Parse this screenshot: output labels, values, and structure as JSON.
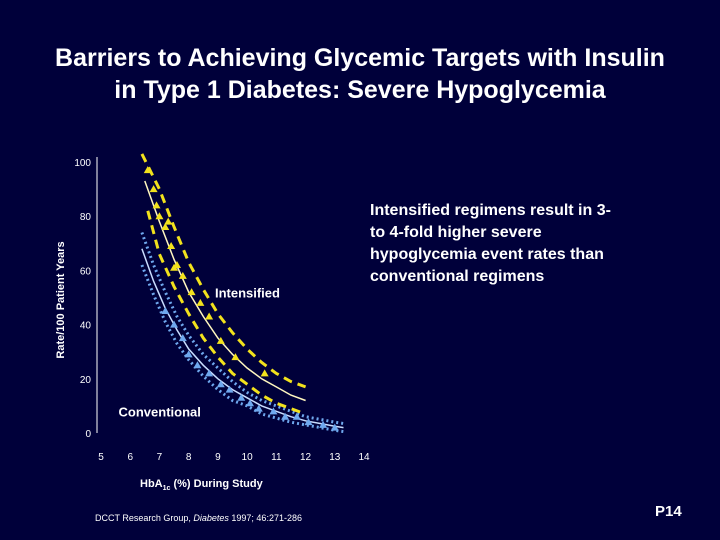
{
  "slide": {
    "title_line1": "Barriers to Achieving Glycemic Targets with Insulin",
    "title_line2": "in Type 1 Diabetes: Severe Hypoglycemia",
    "callout": "Intensified regimens result in 3- to 4-fold higher severe hypoglycemia event rates than conventional regimens",
    "reference_prefix": "DCCT Research Group, ",
    "reference_journal": "Diabetes",
    "reference_suffix": " 1997; 46:271-286",
    "slide_code": "P14"
  },
  "colors": {
    "background": "#00003a",
    "intensified": "#f2e21c",
    "intensified_fit": "#fff7c0",
    "conventional": "#6fa8ee",
    "conventional_fit": "#c9ddff",
    "text": "#ffffff"
  },
  "chart_data": {
    "type": "line",
    "title": "",
    "xlabel_main": "Hb",
    "xlabel_sub": "A",
    "xlabel_subsub": "1c",
    "xlabel_rest": " (%) During Study",
    "ylabel": "Rate/100 Patient Years",
    "xlim": [
      5,
      14
    ],
    "ylim": [
      0,
      100
    ],
    "x_ticks": [
      5,
      6,
      7,
      8,
      9,
      10,
      11,
      12,
      13,
      14
    ],
    "y_ticks": [
      0,
      20,
      40,
      60,
      80,
      100
    ],
    "grid": false,
    "series": [
      {
        "name": "Intensified",
        "label_at": [
          8.9,
          50
        ],
        "fit": [
          [
            6.5,
            93
          ],
          [
            7,
            78
          ],
          [
            7.5,
            64
          ],
          [
            8,
            52
          ],
          [
            8.5,
            43
          ],
          [
            9,
            35
          ],
          [
            9.5,
            29
          ],
          [
            10,
            24
          ],
          [
            10.5,
            20
          ],
          [
            11,
            17
          ],
          [
            11.5,
            14
          ],
          [
            12,
            12
          ]
        ],
        "upper": [
          [
            6.4,
            103
          ],
          [
            7,
            90
          ],
          [
            7.5,
            76
          ],
          [
            8,
            63
          ],
          [
            8.5,
            53
          ],
          [
            9,
            44
          ],
          [
            9.5,
            37
          ],
          [
            10,
            31
          ],
          [
            10.5,
            26
          ],
          [
            11,
            22
          ],
          [
            11.5,
            19
          ],
          [
            12,
            17
          ]
        ],
        "lower": [
          [
            6.6,
            82
          ],
          [
            7,
            66
          ],
          [
            7.5,
            54
          ],
          [
            8,
            44
          ],
          [
            8.5,
            35
          ],
          [
            9,
            28
          ],
          [
            9.5,
            22
          ],
          [
            10,
            18
          ],
          [
            10.5,
            14
          ],
          [
            11,
            11
          ],
          [
            11.5,
            9
          ],
          [
            12,
            7
          ]
        ],
        "points": [
          [
            6.6,
            97
          ],
          [
            6.8,
            90
          ],
          [
            6.9,
            84
          ],
          [
            7,
            80
          ],
          [
            7.2,
            76
          ],
          [
            7.3,
            78
          ],
          [
            7.4,
            69
          ],
          [
            7.5,
            61
          ],
          [
            7.6,
            62
          ],
          [
            7.8,
            58
          ],
          [
            8.1,
            52
          ],
          [
            8.4,
            48
          ],
          [
            8.7,
            43
          ],
          [
            9.1,
            34
          ],
          [
            9.6,
            28
          ],
          [
            10.6,
            22
          ]
        ]
      },
      {
        "name": "Conventional",
        "label_at": [
          5.6,
          6
        ],
        "fit": [
          [
            6.4,
            68
          ],
          [
            6.8,
            56
          ],
          [
            7.2,
            46
          ],
          [
            7.6,
            38
          ],
          [
            8,
            31
          ],
          [
            8.5,
            25
          ],
          [
            9,
            20
          ],
          [
            9.5,
            16
          ],
          [
            10,
            13
          ],
          [
            10.5,
            10
          ],
          [
            11,
            8
          ],
          [
            11.5,
            6
          ],
          [
            12,
            4.5
          ],
          [
            12.5,
            3.5
          ],
          [
            13,
            2.5
          ],
          [
            13.3,
            2
          ]
        ],
        "upper": [
          [
            6.4,
            74
          ],
          [
            6.8,
            62
          ],
          [
            7.2,
            52
          ],
          [
            7.6,
            43
          ],
          [
            8,
            36
          ],
          [
            8.5,
            29
          ],
          [
            9,
            24
          ],
          [
            9.5,
            19
          ],
          [
            10,
            15
          ],
          [
            10.5,
            12
          ],
          [
            11,
            10
          ],
          [
            11.5,
            8
          ],
          [
            12,
            6
          ],
          [
            12.5,
            5
          ],
          [
            13,
            4
          ],
          [
            13.3,
            3.5
          ]
        ],
        "lower": [
          [
            6.4,
            62
          ],
          [
            6.8,
            51
          ],
          [
            7.2,
            41
          ],
          [
            7.6,
            33
          ],
          [
            8,
            27
          ],
          [
            8.5,
            21
          ],
          [
            9,
            16
          ],
          [
            9.5,
            12
          ],
          [
            10,
            10
          ],
          [
            10.5,
            7
          ],
          [
            11,
            5.5
          ],
          [
            11.5,
            4
          ],
          [
            12,
            3
          ],
          [
            12.5,
            2
          ],
          [
            13,
            1
          ],
          [
            13.3,
            0.5
          ]
        ],
        "points": [
          [
            7.2,
            45
          ],
          [
            7.5,
            40
          ],
          [
            7.8,
            35
          ],
          [
            8,
            29
          ],
          [
            8.3,
            25
          ],
          [
            8.7,
            22
          ],
          [
            9.1,
            18
          ],
          [
            9.4,
            16
          ],
          [
            9.8,
            13
          ],
          [
            10.1,
            11
          ],
          [
            10.4,
            9
          ],
          [
            10.9,
            8
          ],
          [
            11.3,
            6
          ],
          [
            11.7,
            6
          ],
          [
            12.1,
            4
          ],
          [
            12.6,
            3
          ],
          [
            13,
            2
          ]
        ]
      }
    ]
  }
}
